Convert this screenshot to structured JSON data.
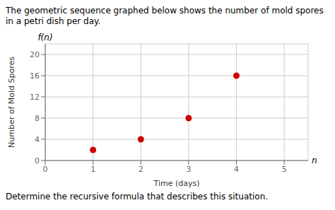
{
  "chart_data": {
    "type": "scatter",
    "title": "The geometric sequence graphed below shows the number of mold spores in a petri dish per day.",
    "x_label": "Time (days)",
    "y_label": "Number of Mold Spores",
    "x": [
      1,
      2,
      3,
      4
    ],
    "values": [
      2,
      4,
      8,
      16
    ],
    "color": "#cc0000",
    "xlim": [
      0,
      5.5
    ],
    "ylim": [
      0,
      22
    ],
    "xticks": [
      0,
      1,
      2,
      3,
      4,
      5
    ],
    "yticks": [
      0,
      4,
      8,
      12,
      16,
      20
    ],
    "grid": true,
    "annotations": [
      "n",
      "f(n)",
      "Determine the recursive formula that describes this situation."
    ]
  }
}
